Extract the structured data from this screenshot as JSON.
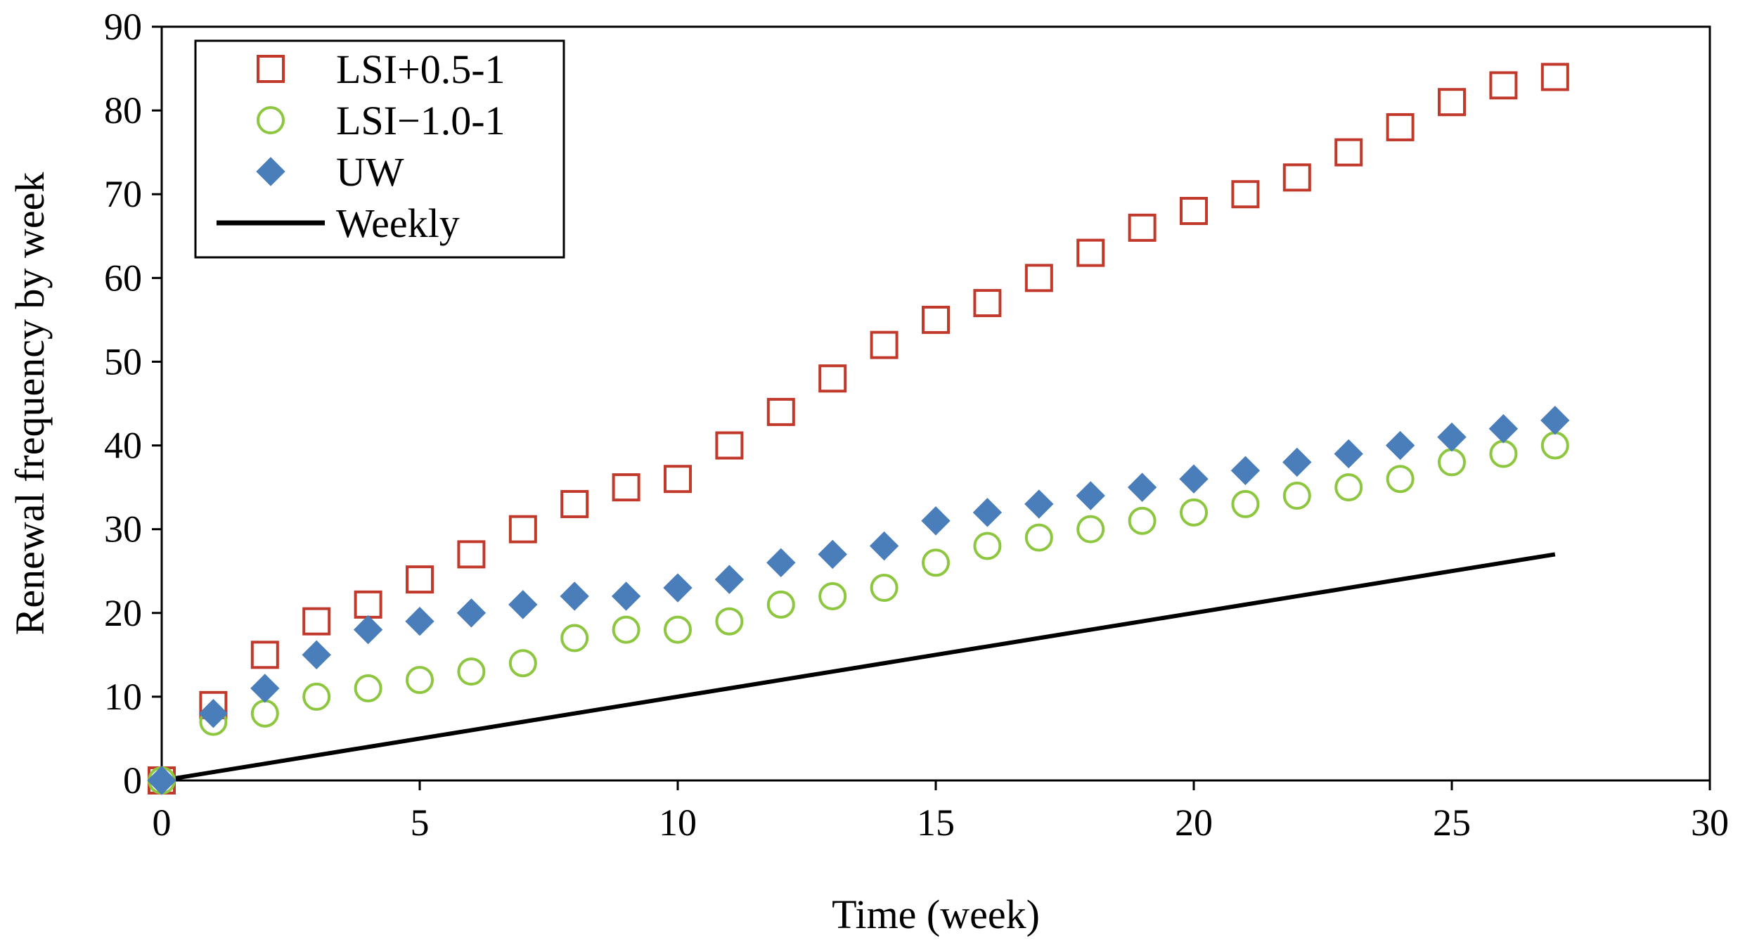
{
  "chart_data": {
    "type": "scatter",
    "title": "",
    "xlabel": "Time (week)",
    "ylabel": "Renewal frequency by week",
    "xlim": [
      0,
      30
    ],
    "ylim": [
      0,
      90
    ],
    "xticks": [
      0,
      5,
      10,
      15,
      20,
      25,
      30
    ],
    "yticks": [
      0,
      10,
      20,
      30,
      40,
      50,
      60,
      70,
      80,
      90
    ],
    "grid": false,
    "legend_position": "top-left",
    "x": [
      0,
      1,
      2,
      3,
      4,
      5,
      6,
      7,
      8,
      9,
      10,
      11,
      12,
      13,
      14,
      15,
      16,
      17,
      18,
      19,
      20,
      21,
      22,
      23,
      24,
      25,
      26,
      27
    ],
    "series": [
      {
        "name": "LSI+0.5-1",
        "marker": "open-square",
        "color": "#c0392b",
        "values": [
          0,
          9,
          15,
          19,
          21,
          24,
          27,
          30,
          33,
          35,
          36,
          40,
          44,
          48,
          52,
          55,
          57,
          60,
          63,
          66,
          68,
          70,
          72,
          75,
          78,
          81,
          83,
          84
        ]
      },
      {
        "name": "LSI−1.0-1",
        "marker": "open-circle",
        "color": "#8dc63f",
        "values": [
          0,
          7,
          8,
          10,
          11,
          12,
          13,
          14,
          17,
          18,
          18,
          19,
          21,
          22,
          23,
          26,
          28,
          29,
          30,
          31,
          32,
          33,
          34,
          35,
          36,
          38,
          39,
          40
        ]
      },
      {
        "name": "UW",
        "marker": "filled-diamond",
        "color": "#4a7ebb",
        "values": [
          0,
          8,
          11,
          15,
          18,
          19,
          20,
          21,
          22,
          22,
          23,
          24,
          26,
          27,
          28,
          31,
          32,
          33,
          34,
          35,
          36,
          37,
          38,
          39,
          40,
          41,
          42,
          43
        ]
      },
      {
        "name": "Weekly",
        "marker": "line",
        "color": "#000000",
        "values": [
          0,
          1,
          2,
          3,
          4,
          5,
          6,
          7,
          8,
          9,
          10,
          11,
          12,
          13,
          14,
          15,
          16,
          17,
          18,
          19,
          20,
          21,
          22,
          23,
          24,
          25,
          26,
          27
        ]
      }
    ]
  }
}
